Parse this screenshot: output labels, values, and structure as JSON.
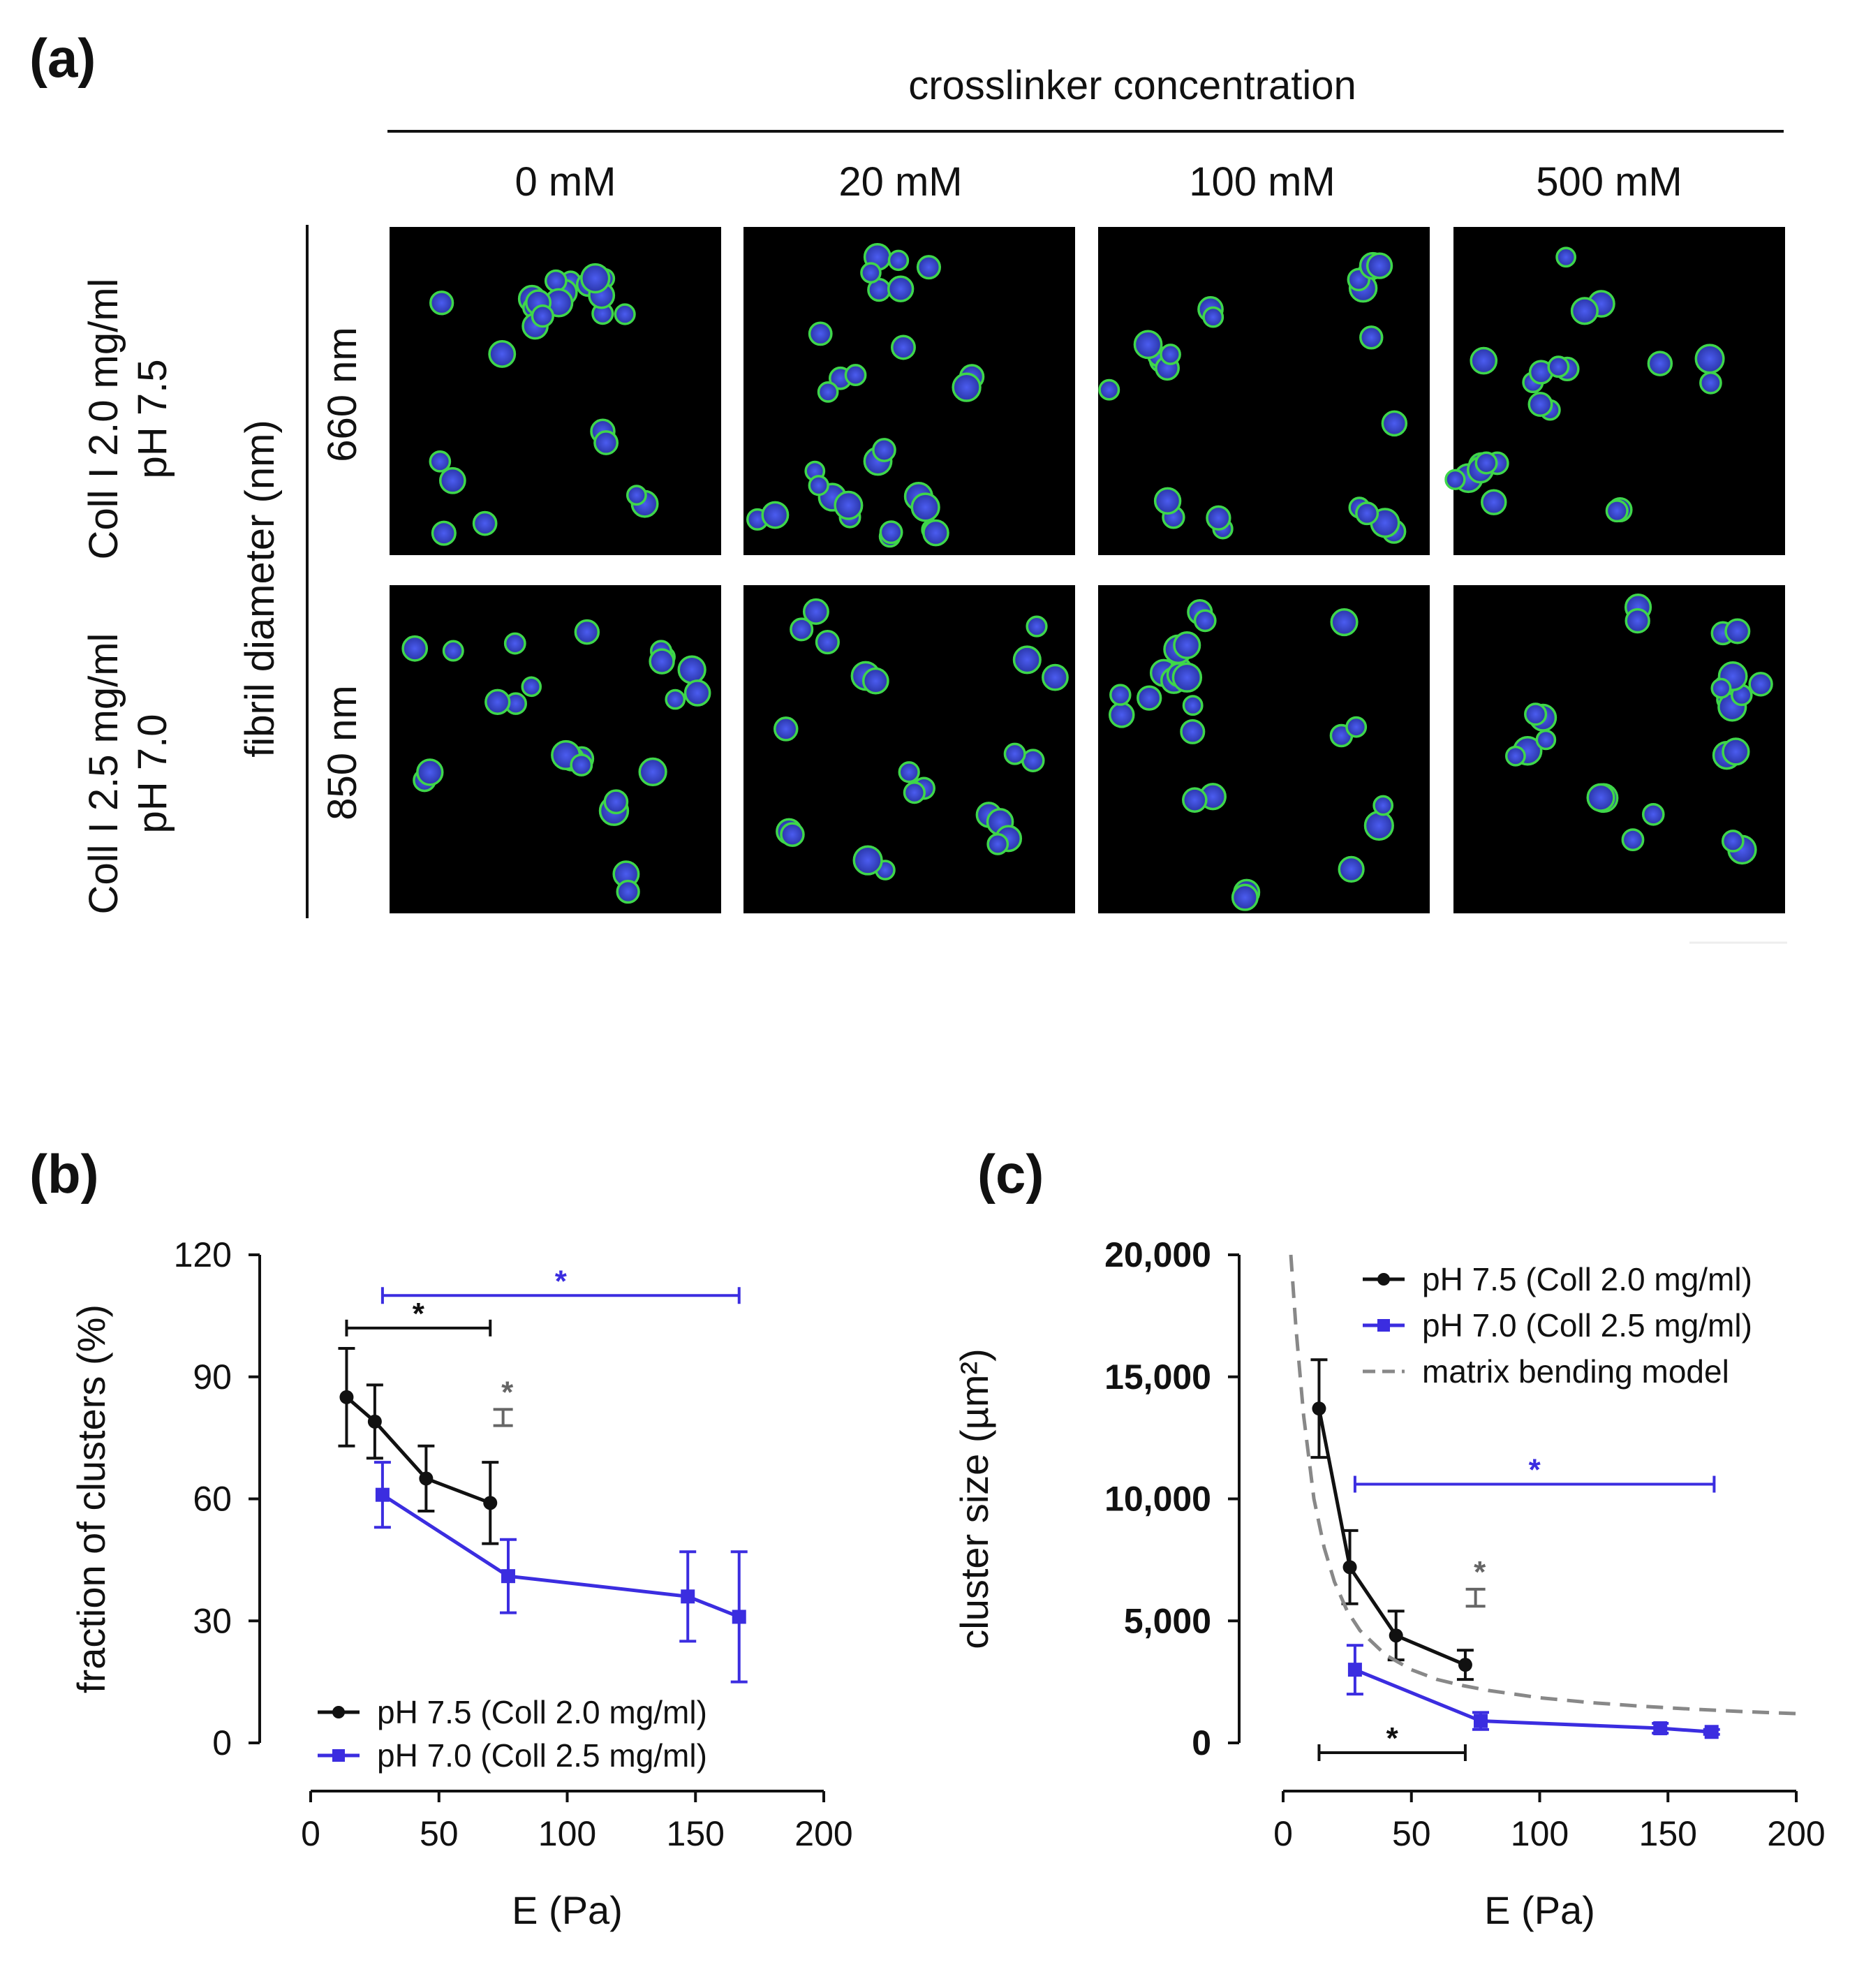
{
  "panel_a": {
    "letter": "(a)",
    "header": "crosslinker concentration",
    "columns": [
      "0 mM",
      "20 mM",
      "100 mM",
      "500 mM"
    ],
    "side_label": "fibril diameter (nm)",
    "rows": [
      {
        "condition_line1": "Coll I 2.0 mg/ml",
        "condition_line2": "pH 7.5",
        "diameter": "660 nm"
      },
      {
        "condition_line1": "Coll I 2.5 mg/ml",
        "condition_line2": "pH 7.0",
        "diameter": "850 nm"
      }
    ],
    "colors": {
      "membrane": "#3fd64a",
      "nucleus": "#3a4ad8",
      "background": "#000000"
    }
  },
  "chart_data": [
    {
      "panel": "(b)",
      "type": "line",
      "xlabel": "E (Pa)",
      "ylabel": "fraction of clusters (%)",
      "xlim": [
        0,
        200
      ],
      "ylim": [
        0,
        120
      ],
      "xticks": [
        "0",
        "50",
        "100",
        "150",
        "200"
      ],
      "yticks": [
        "0",
        "30",
        "60",
        "90",
        "120"
      ],
      "legend_position": "bottom-left",
      "grid": false,
      "series": [
        {
          "name": "pH 7.5 (Coll 2.0 mg/ml)",
          "color": "#111111",
          "marker": "circle",
          "x": [
            14,
            25,
            45,
            70
          ],
          "y": [
            85,
            79,
            65,
            59
          ],
          "err": [
            12,
            9,
            8,
            10
          ]
        },
        {
          "name": "pH 7.0 (Coll 2.5 mg/ml)",
          "color": "#3b2de0",
          "marker": "square",
          "x": [
            28,
            77,
            147,
            167
          ],
          "y": [
            61,
            41,
            36,
            31
          ],
          "err": [
            8,
            9,
            11,
            16
          ]
        }
      ],
      "annotations": [
        {
          "text": "*",
          "type": "bracket",
          "x1": 14,
          "x2": 70,
          "y": 102,
          "color": "#111111"
        },
        {
          "text": "*",
          "type": "bracket",
          "x1": 28,
          "x2": 167,
          "y": 110,
          "color": "#3b2de0"
        },
        {
          "text": "*",
          "type": "vbracket",
          "x": 75,
          "y1": 78,
          "y2": 82,
          "color": "#666666"
        }
      ]
    },
    {
      "panel": "(c)",
      "type": "line",
      "xlabel": "E (Pa)",
      "ylabel": "cluster size (µm²)",
      "xlim": [
        0,
        200
      ],
      "ylim": [
        0,
        20000
      ],
      "xticks": [
        "0",
        "50",
        "100",
        "150",
        "200"
      ],
      "yticks": [
        "0",
        "5,000",
        "10,000",
        "15,000",
        "20,000"
      ],
      "legend_position": "top-right",
      "grid": false,
      "series": [
        {
          "name": "pH 7.5 (Coll 2.0 mg/ml)",
          "color": "#111111",
          "marker": "circle",
          "x": [
            14,
            26,
            44,
            71
          ],
          "y": [
            13700,
            7200,
            4400,
            3200
          ],
          "err": [
            2000,
            1500,
            1000,
            600
          ]
        },
        {
          "name": "pH 7.0 (Coll 2.5 mg/ml)",
          "color": "#3b2de0",
          "marker": "square",
          "x": [
            28,
            77,
            147,
            167
          ],
          "y": [
            3000,
            900,
            600,
            450
          ],
          "err": [
            1000,
            350,
            200,
            100
          ]
        },
        {
          "name": "matrix bending model",
          "color": "#888888",
          "style": "dashed",
          "x": [
            3,
            5,
            8,
            12,
            16,
            20,
            25,
            30,
            40,
            50,
            60,
            70,
            80,
            100,
            120,
            140,
            160,
            180,
            200
          ],
          "y": [
            20000,
            17000,
            13400,
            10000,
            8000,
            6600,
            5400,
            4600,
            3600,
            3000,
            2600,
            2350,
            2150,
            1850,
            1650,
            1500,
            1380,
            1280,
            1200
          ]
        }
      ],
      "annotations": [
        {
          "text": "*",
          "type": "bracket",
          "x1": 28,
          "x2": 168,
          "y": 10600,
          "color": "#3b2de0"
        },
        {
          "text": "*",
          "type": "bracket_below",
          "x1": 14,
          "x2": 71,
          "y": -800,
          "color": "#111111"
        },
        {
          "text": "*",
          "type": "vbracket",
          "x": 75,
          "y1": 5600,
          "y2": 6300,
          "color": "#666666"
        }
      ]
    }
  ]
}
